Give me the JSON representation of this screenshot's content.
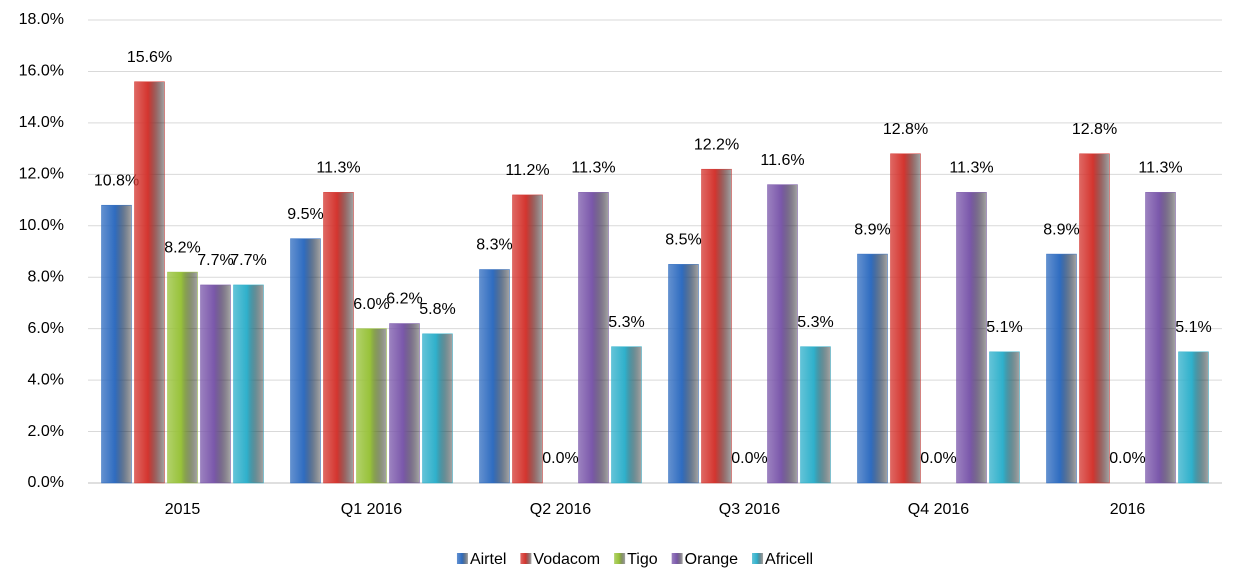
{
  "chart_data": {
    "type": "bar",
    "categories": [
      "2015",
      "Q1 2016",
      "Q2 2016",
      "Q3 2016",
      "Q4 2016",
      "2016"
    ],
    "series": [
      {
        "name": "Airtel",
        "color": "#2f6cc0",
        "values": [
          10.8,
          9.5,
          8.3,
          8.5,
          8.9,
          8.9
        ],
        "value_labels": [
          "10.8%",
          "9.5%",
          "8.3%",
          "8.5%",
          "8.9%",
          "8.9%"
        ]
      },
      {
        "name": "Vodacom",
        "color": "#d4352f",
        "values": [
          15.6,
          11.3,
          11.2,
          12.2,
          12.8,
          12.8
        ],
        "value_labels": [
          "15.6%",
          "11.3%",
          "11.2%",
          "12.2%",
          "12.8%",
          "12.8%"
        ]
      },
      {
        "name": "Tigo",
        "color": "#98c23a",
        "values": [
          8.2,
          6.0,
          0.0,
          0.0,
          0.0,
          0.0
        ],
        "value_labels": [
          "8.2%",
          "6.0%",
          "0.0%",
          "0.0%",
          "0.0%",
          "0.0%"
        ]
      },
      {
        "name": "Orange",
        "color": "#7b58ab",
        "values": [
          7.7,
          6.2,
          11.3,
          11.6,
          11.3,
          11.3
        ],
        "value_labels": [
          "7.7%",
          "6.2%",
          "11.3%",
          "11.6%",
          "11.3%",
          "11.3%"
        ]
      },
      {
        "name": "Africell",
        "color": "#2fb0cb",
        "values": [
          7.7,
          5.8,
          5.3,
          5.3,
          5.1,
          5.1
        ],
        "value_labels": [
          "7.7%",
          "5.8%",
          "5.3%",
          "5.3%",
          "5.1%",
          "5.1%"
        ]
      }
    ],
    "ylim": [
      0,
      18
    ],
    "yticks": [
      {
        "value": 0,
        "label": "0.0%"
      },
      {
        "value": 2,
        "label": "2.0%"
      },
      {
        "value": 4,
        "label": "4.0%"
      },
      {
        "value": 6,
        "label": "6.0%"
      },
      {
        "value": 8,
        "label": "8.0%"
      },
      {
        "value": 10,
        "label": "10.0%"
      },
      {
        "value": 12,
        "label": "12.0%"
      },
      {
        "value": 14,
        "label": "14.0%"
      },
      {
        "value": 16,
        "label": "16.0%"
      },
      {
        "value": 18,
        "label": "18.0%"
      }
    ],
    "grid": true,
    "legend": "bottom"
  }
}
